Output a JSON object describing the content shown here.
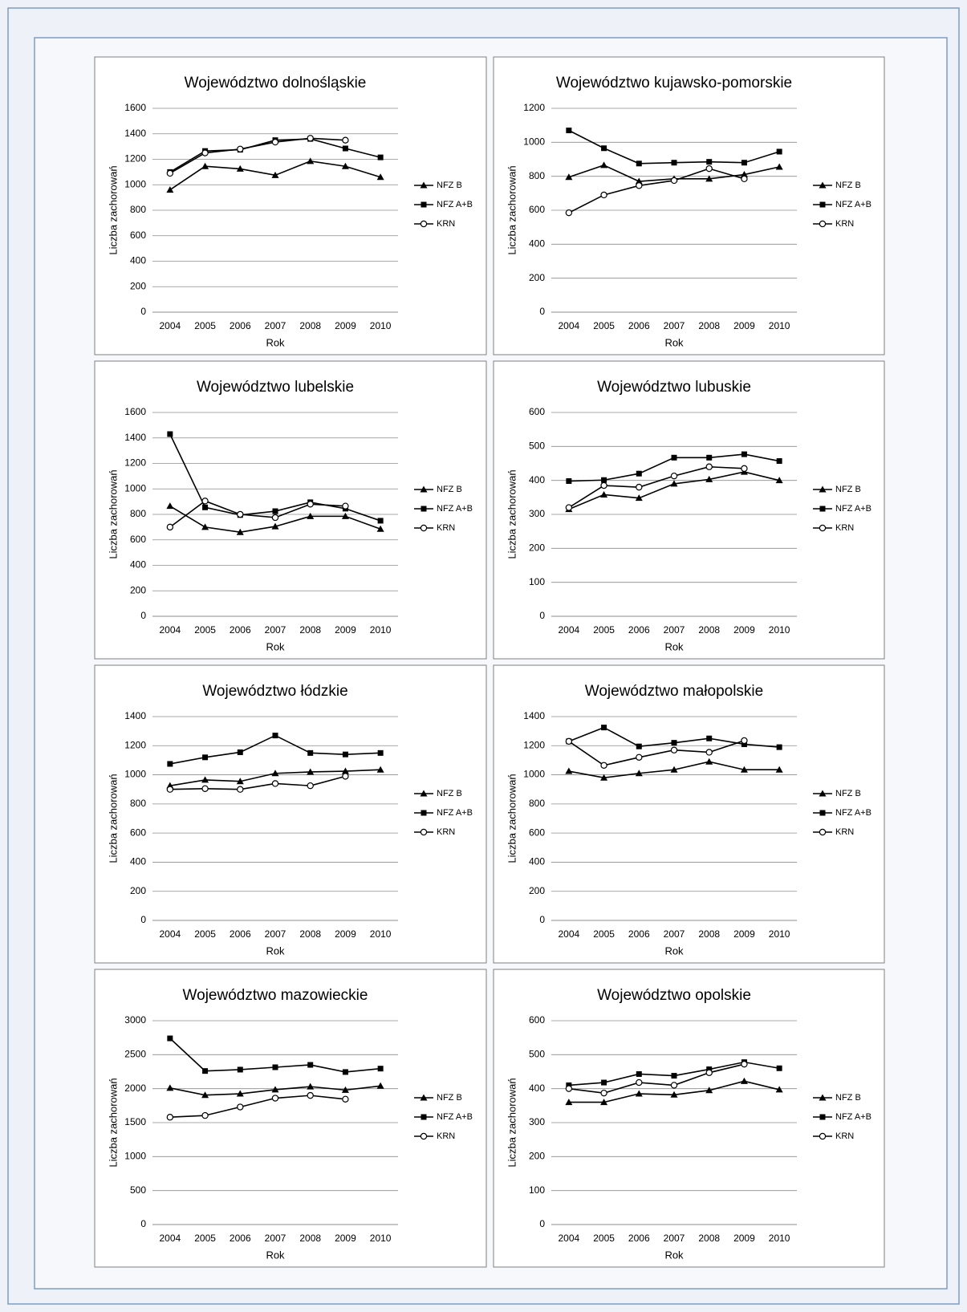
{
  "chart_data": [
    {
      "type": "line",
      "title": "Województwo dolnośląskie",
      "xlabel": "Rok",
      "ylabel": "Liczba zachorowań",
      "categories": [
        "2004",
        "2005",
        "2006",
        "2007",
        "2008",
        "2009",
        "2010"
      ],
      "series": [
        {
          "name": "NFZ B",
          "color": "#000000",
          "marker": "triangle",
          "values": [
            960,
            1145,
            1125,
            1075,
            1185,
            1145,
            1060
          ]
        },
        {
          "name": "NFZ A+B",
          "color": "#000000",
          "marker": "square",
          "values": [
            1100,
            1265,
            1275,
            1350,
            1360,
            1285,
            1215
          ]
        },
        {
          "name": "KRN",
          "color": "#000000",
          "marker": "circle",
          "values": [
            1090,
            1250,
            1280,
            1335,
            1365,
            1350,
            null
          ]
        }
      ],
      "ylim": [
        0,
        1600
      ],
      "yticks": [
        0,
        200,
        400,
        600,
        800,
        1000,
        1200,
        1400,
        1600
      ],
      "grid": true
    },
    {
      "type": "line",
      "title": "Województwo kujawsko-pomorskie",
      "xlabel": "Rok",
      "ylabel": "Liczba zachorowań",
      "categories": [
        "2004",
        "2005",
        "2006",
        "2007",
        "2008",
        "2009",
        "2010"
      ],
      "series": [
        {
          "name": "NFZ B",
          "color": "#000000",
          "marker": "triangle",
          "values": [
            795,
            865,
            770,
            785,
            785,
            810,
            855
          ]
        },
        {
          "name": "NFZ A+B",
          "color": "#000000",
          "marker": "square",
          "values": [
            1070,
            965,
            875,
            880,
            885,
            880,
            945
          ]
        },
        {
          "name": "KRN",
          "color": "#000000",
          "marker": "circle",
          "values": [
            585,
            690,
            745,
            775,
            845,
            785,
            null
          ]
        }
      ],
      "ylim": [
        0,
        1200
      ],
      "yticks": [
        0,
        200,
        400,
        600,
        800,
        1000,
        1200
      ],
      "grid": true
    },
    {
      "type": "line",
      "title": "Województwo lubelskie",
      "xlabel": "Rok",
      "ylabel": "Liczba zachorowań",
      "categories": [
        "2004",
        "2005",
        "2006",
        "2007",
        "2008",
        "2009",
        "2010"
      ],
      "series": [
        {
          "name": "NFZ B",
          "color": "#000000",
          "marker": "triangle",
          "values": [
            865,
            700,
            660,
            705,
            785,
            785,
            685
          ]
        },
        {
          "name": "NFZ A+B",
          "color": "#000000",
          "marker": "square",
          "values": [
            1430,
            855,
            795,
            825,
            895,
            845,
            750
          ]
        },
        {
          "name": "KRN",
          "color": "#000000",
          "marker": "circle",
          "values": [
            700,
            905,
            800,
            775,
            880,
            865,
            null
          ]
        }
      ],
      "ylim": [
        0,
        1600
      ],
      "yticks": [
        0,
        200,
        400,
        600,
        800,
        1000,
        1200,
        1400,
        1600
      ],
      "grid": true
    },
    {
      "type": "line",
      "title": "Województwo lubuskie",
      "xlabel": "Rok",
      "ylabel": "Liczba zachorowań",
      "categories": [
        "2004",
        "2005",
        "2006",
        "2007",
        "2008",
        "2009",
        "2010"
      ],
      "series": [
        {
          "name": "NFZ B",
          "color": "#000000",
          "marker": "triangle",
          "values": [
            315,
            358,
            348,
            390,
            403,
            425,
            400
          ]
        },
        {
          "name": "NFZ A+B",
          "color": "#000000",
          "marker": "square",
          "values": [
            398,
            401,
            420,
            467,
            467,
            477,
            457
          ]
        },
        {
          "name": "KRN",
          "color": "#000000",
          "marker": "circle",
          "values": [
            320,
            385,
            380,
            413,
            440,
            435,
            null
          ]
        }
      ],
      "ylim": [
        0,
        600
      ],
      "yticks": [
        0,
        100,
        200,
        300,
        400,
        500,
        600
      ],
      "grid": true
    },
    {
      "type": "line",
      "title": "Województwo łódzkie",
      "xlabel": "Rok",
      "ylabel": "Liczba zachorowań",
      "categories": [
        "2004",
        "2005",
        "2006",
        "2007",
        "2008",
        "2009",
        "2010"
      ],
      "series": [
        {
          "name": "NFZ B",
          "color": "#000000",
          "marker": "triangle",
          "values": [
            925,
            965,
            955,
            1010,
            1020,
            1025,
            1035
          ]
        },
        {
          "name": "NFZ A+B",
          "color": "#000000",
          "marker": "square",
          "values": [
            1075,
            1120,
            1155,
            1270,
            1150,
            1140,
            1150
          ]
        },
        {
          "name": "KRN",
          "color": "#000000",
          "marker": "circle",
          "values": [
            900,
            905,
            900,
            940,
            925,
            990,
            null
          ]
        }
      ],
      "ylim": [
        0,
        1400
      ],
      "yticks": [
        0,
        200,
        400,
        600,
        800,
        1000,
        1200,
        1400
      ],
      "grid": true
    },
    {
      "type": "line",
      "title": "Województwo małopolskie",
      "xlabel": "Rok",
      "ylabel": "Liczba zachorowań",
      "categories": [
        "2004",
        "2005",
        "2006",
        "2007",
        "2008",
        "2009",
        "2010"
      ],
      "series": [
        {
          "name": "NFZ B",
          "color": "#000000",
          "marker": "triangle",
          "values": [
            1025,
            980,
            1010,
            1035,
            1090,
            1035,
            1035
          ]
        },
        {
          "name": "NFZ A+B",
          "color": "#000000",
          "marker": "square",
          "values": [
            1230,
            1325,
            1195,
            1220,
            1250,
            1210,
            1190
          ]
        },
        {
          "name": "KRN",
          "color": "#000000",
          "marker": "circle",
          "values": [
            1230,
            1065,
            1120,
            1170,
            1155,
            1235,
            null
          ]
        }
      ],
      "ylim": [
        0,
        1400
      ],
      "yticks": [
        0,
        200,
        400,
        600,
        800,
        1000,
        1200,
        1400
      ],
      "grid": true
    },
    {
      "type": "line",
      "title": "Województwo mazowieckie",
      "xlabel": "Rok",
      "ylabel": "Liczba zachorowań",
      "categories": [
        "2004",
        "2005",
        "2006",
        "2007",
        "2008",
        "2009",
        "2010"
      ],
      "series": [
        {
          "name": "NFZ B",
          "color": "#000000",
          "marker": "triangle",
          "values": [
            2010,
            1905,
            1925,
            1985,
            2030,
            1980,
            2040
          ]
        },
        {
          "name": "NFZ A+B",
          "color": "#000000",
          "marker": "square",
          "values": [
            2740,
            2260,
            2280,
            2315,
            2350,
            2245,
            2295
          ]
        },
        {
          "name": "KRN",
          "color": "#000000",
          "marker": "circle",
          "values": [
            1580,
            1605,
            1730,
            1860,
            1900,
            1845,
            null
          ]
        }
      ],
      "ylim": [
        0,
        3000
      ],
      "yticks": [
        0,
        500,
        1000,
        1500,
        2000,
        2500,
        3000
      ],
      "grid": true
    },
    {
      "type": "line",
      "title": "Województwo opolskie",
      "xlabel": "Rok",
      "ylabel": "Liczba zachorowań",
      "categories": [
        "2004",
        "2005",
        "2006",
        "2007",
        "2008",
        "2009",
        "2010"
      ],
      "series": [
        {
          "name": "NFZ B",
          "color": "#000000",
          "marker": "triangle",
          "values": [
            360,
            360,
            385,
            382,
            395,
            422,
            397
          ]
        },
        {
          "name": "NFZ A+B",
          "color": "#000000",
          "marker": "square",
          "values": [
            410,
            418,
            443,
            438,
            457,
            478,
            460
          ]
        },
        {
          "name": "KRN",
          "color": "#000000",
          "marker": "circle",
          "values": [
            400,
            387,
            418,
            410,
            447,
            472,
            null
          ]
        }
      ],
      "ylim": [
        0,
        600
      ],
      "yticks": [
        0,
        100,
        200,
        300,
        400,
        500,
        600
      ],
      "grid": true
    }
  ]
}
